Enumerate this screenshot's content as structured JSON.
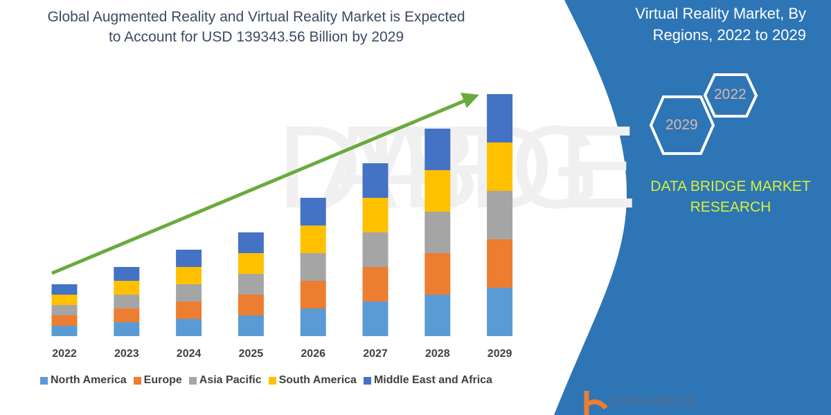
{
  "title": "Global Augmented Reality and Virtual Reality Market is Expected to Account for USD 139343.56 Billion by 2029",
  "right_panel": {
    "title_line1": "Virtual Reality Market, By",
    "title_line2": "Regions, 2022 to 2029",
    "hex_years": [
      "2022",
      "2029"
    ],
    "brand_line1": "DATA BRIDGE MARKET",
    "brand_line2": "RESEARCH",
    "logo_text": "DATA BRIDGE"
  },
  "colors": {
    "panel": "#2e75b6",
    "arrow": "#6aab3c"
  },
  "chart_data": {
    "type": "bar",
    "stacked": true,
    "title": "Global Augmented Reality and Virtual Reality Market is Expected to Account for USD 139343.56 Billion by 2029",
    "categories": [
      "2022",
      "2023",
      "2024",
      "2025",
      "2026",
      "2027",
      "2028",
      "2029"
    ],
    "series": [
      {
        "name": "North America",
        "color": "#5b9bd5",
        "values": [
          15,
          20,
          25,
          30,
          40,
          50,
          60,
          70
        ]
      },
      {
        "name": "Europe",
        "color": "#ed7d31",
        "values": [
          15,
          20,
          25,
          30,
          40,
          50,
          60,
          70
        ]
      },
      {
        "name": "Asia Pacific",
        "color": "#a5a5a5",
        "values": [
          15,
          20,
          25,
          30,
          40,
          50,
          60,
          70
        ]
      },
      {
        "name": "South America",
        "color": "#ffc000",
        "values": [
          15,
          20,
          25,
          30,
          40,
          50,
          60,
          70
        ]
      },
      {
        "name": "Middle East and Africa",
        "color": "#4472c4",
        "values": [
          15,
          20,
          25,
          30,
          40,
          50,
          60,
          70
        ]
      }
    ],
    "ylim": [
      0,
      350
    ],
    "grid": false,
    "legend": "bottom",
    "xlabel": "",
    "ylabel": ""
  }
}
